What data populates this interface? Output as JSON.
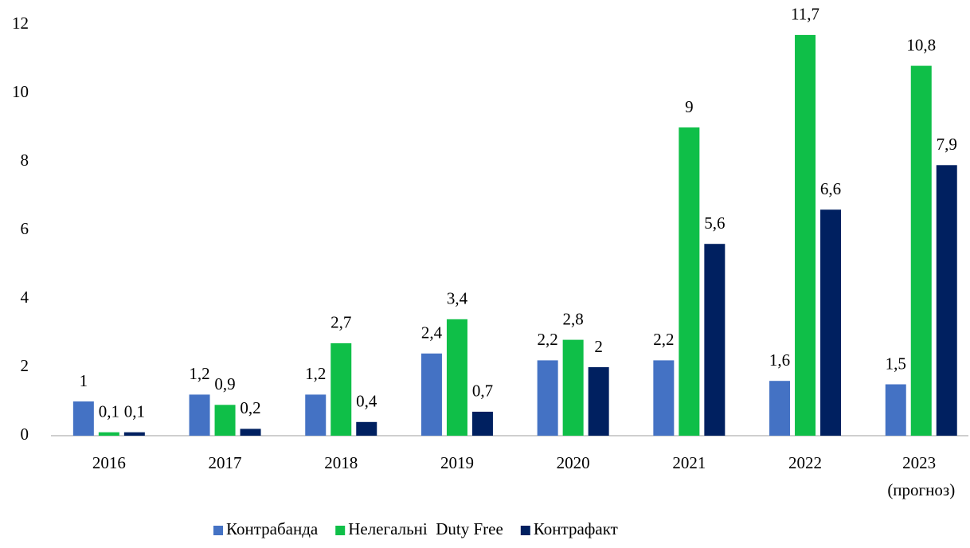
{
  "chart_data": {
    "type": "bar",
    "categories": [
      "2016",
      "2017",
      "2018",
      "2019",
      "2020",
      "2021",
      "2022",
      "2023 (прогноз)"
    ],
    "series": [
      {
        "name": "Контрабанда",
        "color": "#4472c4",
        "values": [
          1,
          1.2,
          1.2,
          2.4,
          2.2,
          2.2,
          1.6,
          1.5
        ],
        "value_labels": [
          "1",
          "1,2",
          "1,2",
          "2,4",
          "2,2",
          "2,2",
          "1,6",
          "1,5"
        ]
      },
      {
        "name": "Нелегальні  Duty Free",
        "color": "#0fbf48",
        "values": [
          0.1,
          0.9,
          2.7,
          3.4,
          2.8,
          9,
          11.7,
          10.8
        ],
        "value_labels": [
          "0,1",
          "0,9",
          "2,7",
          "3,4",
          "2,8",
          "9",
          "11,7",
          "10,8"
        ]
      },
      {
        "name": "Контрафакт",
        "color": "#002060",
        "values": [
          0.1,
          0.2,
          0.4,
          0.7,
          2,
          5.6,
          6.6,
          7.9
        ],
        "value_labels": [
          "0,1",
          "0,2",
          "0,4",
          "0,7",
          "2",
          "5,6",
          "6,6",
          "7,9"
        ]
      }
    ],
    "ylim": [
      0,
      12
    ],
    "yticks": [
      0,
      2,
      4,
      6,
      8,
      10,
      12
    ],
    "grid": false,
    "legend": "bottom"
  }
}
